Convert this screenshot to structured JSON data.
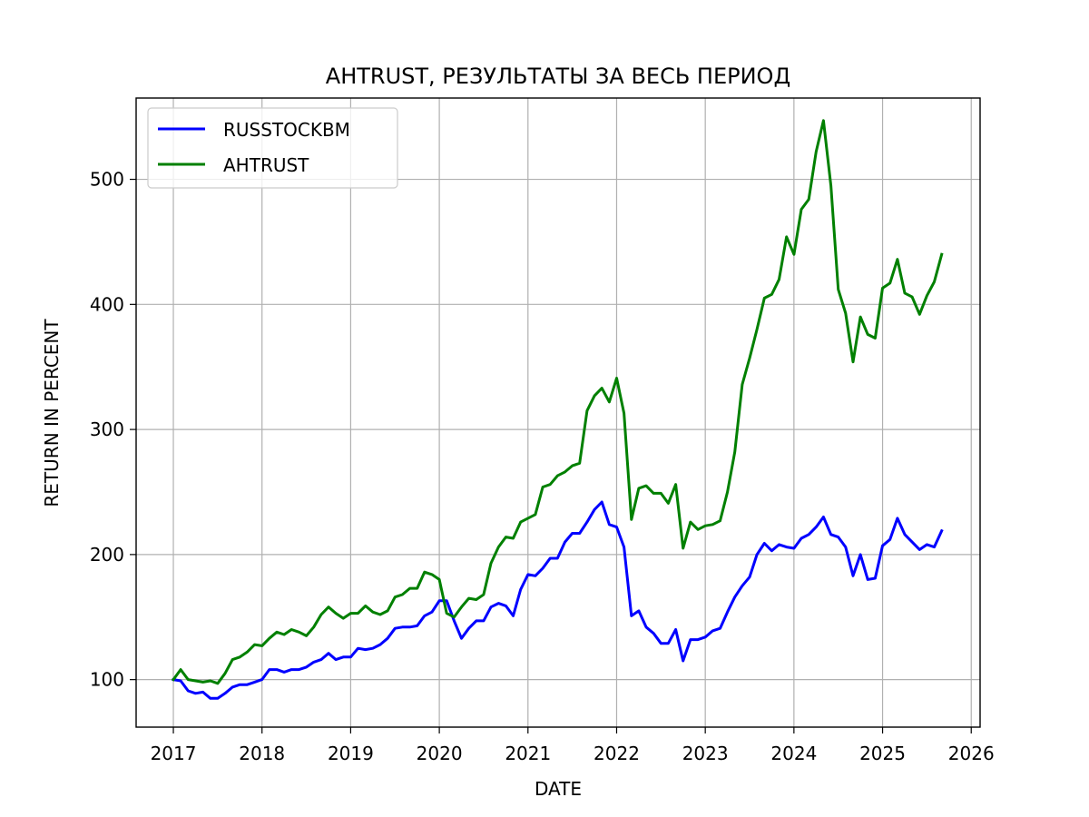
{
  "chart_data": {
    "type": "line",
    "title": "AHTRUST, РЕЗУЛЬТАТЫ ЗА ВЕСЬ ПЕРИОД",
    "xlabel": "DATE",
    "ylabel": "RETURN IN PERCENT",
    "xlim": [
      2016.58,
      2026.1
    ],
    "ylim": [
      62,
      565
    ],
    "xticks": [
      2017,
      2018,
      2019,
      2020,
      2021,
      2022,
      2023,
      2024,
      2025,
      2026
    ],
    "yticks": [
      100,
      200,
      300,
      400,
      500
    ],
    "grid": true,
    "legend_position": "top-left",
    "x": [
      2017.0,
      2017.083,
      2017.167,
      2017.25,
      2017.333,
      2017.417,
      2017.5,
      2017.583,
      2017.667,
      2017.75,
      2017.833,
      2017.917,
      2018.0,
      2018.083,
      2018.167,
      2018.25,
      2018.333,
      2018.417,
      2018.5,
      2018.583,
      2018.667,
      2018.75,
      2018.833,
      2018.917,
      2019.0,
      2019.083,
      2019.167,
      2019.25,
      2019.333,
      2019.417,
      2019.5,
      2019.583,
      2019.667,
      2019.75,
      2019.833,
      2019.917,
      2020.0,
      2020.083,
      2020.167,
      2020.25,
      2020.333,
      2020.417,
      2020.5,
      2020.583,
      2020.667,
      2020.75,
      2020.833,
      2020.917,
      2021.0,
      2021.083,
      2021.167,
      2021.25,
      2021.333,
      2021.417,
      2021.5,
      2021.583,
      2021.667,
      2021.75,
      2021.833,
      2021.917,
      2022.0,
      2022.083,
      2022.167,
      2022.25,
      2022.333,
      2022.417,
      2022.5,
      2022.583,
      2022.667,
      2022.75,
      2022.833,
      2022.917,
      2023.0,
      2023.083,
      2023.167,
      2023.25,
      2023.333,
      2023.417,
      2023.5,
      2023.583,
      2023.667,
      2023.75,
      2023.833,
      2023.917,
      2024.0,
      2024.083,
      2024.167,
      2024.25,
      2024.333,
      2024.417,
      2024.5,
      2024.583,
      2024.667,
      2024.75,
      2024.833,
      2024.917,
      2025.0,
      2025.083,
      2025.167,
      2025.25,
      2025.333,
      2025.417,
      2025.5,
      2025.583,
      2025.667
    ],
    "series": [
      {
        "name": "RUSSTOCKBM",
        "color": "#0000ff",
        "values": [
          100,
          99,
          91,
          89,
          90,
          85,
          85,
          89,
          94,
          96,
          96,
          98,
          100,
          108,
          108,
          106,
          108,
          108,
          110,
          114,
          116,
          121,
          116,
          118,
          118,
          125,
          124,
          125,
          128,
          133,
          141,
          142,
          142,
          143,
          151,
          154,
          163,
          163,
          147,
          133,
          141,
          147,
          147,
          158,
          161,
          159,
          151,
          172,
          184,
          183,
          189,
          197,
          197,
          210,
          217,
          217,
          226,
          236,
          242,
          224,
          222,
          206,
          151,
          155,
          142,
          137,
          129,
          129,
          140,
          115,
          132,
          132,
          134,
          139,
          141,
          154,
          166,
          175,
          182,
          200,
          209,
          203,
          208,
          206,
          205,
          213,
          216,
          222,
          230,
          216,
          214,
          206,
          183,
          200,
          180,
          181,
          207,
          212,
          229,
          216,
          210,
          204,
          208,
          206,
          219
        ]
      },
      {
        "name": "AHTRUST",
        "color": "#008000",
        "values": [
          100,
          108,
          100,
          99,
          98,
          99,
          97,
          105,
          116,
          118,
          122,
          128,
          127,
          133,
          138,
          136,
          140,
          138,
          135,
          142,
          152,
          158,
          153,
          149,
          153,
          153,
          159,
          154,
          152,
          155,
          166,
          168,
          173,
          173,
          186,
          184,
          180,
          153,
          150,
          158,
          165,
          164,
          168,
          193,
          206,
          214,
          213,
          226,
          229,
          232,
          254,
          256,
          263,
          266,
          271,
          273,
          315,
          327,
          333,
          322,
          341,
          313,
          228,
          253,
          255,
          249,
          249,
          241,
          256,
          205,
          226,
          220,
          223,
          224,
          227,
          250,
          282,
          336,
          357,
          380,
          405,
          408,
          420,
          454,
          440,
          476,
          484,
          522,
          547,
          495,
          412,
          393,
          354,
          390,
          376,
          373,
          413,
          417,
          436,
          409,
          406,
          392,
          407,
          418,
          440
        ]
      }
    ]
  }
}
